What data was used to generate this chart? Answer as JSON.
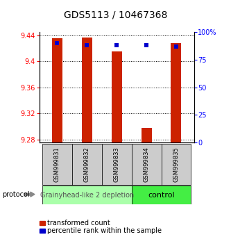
{
  "title": "GDS5113 / 10467368",
  "samples": [
    "GSM999831",
    "GSM999832",
    "GSM999833",
    "GSM999834",
    "GSM999835"
  ],
  "red_values": [
    9.435,
    9.437,
    9.415,
    9.298,
    9.428
  ],
  "blue_values": [
    90,
    88,
    88,
    88,
    87
  ],
  "ylim_left": [
    9.275,
    9.445
  ],
  "ylim_right": [
    0,
    100
  ],
  "yticks_left": [
    9.28,
    9.32,
    9.36,
    9.4,
    9.44
  ],
  "yticks_right": [
    0,
    25,
    50,
    75,
    100
  ],
  "ytick_labels_right": [
    "0",
    "25",
    "50",
    "75",
    "100%"
  ],
  "red_base": 9.275,
  "group1_label": "Grainyhead-like 2 depletion",
  "group1_color": "#aaffaa",
  "group2_label": "control",
  "group2_color": "#44ee44",
  "protocol_label": "protocol",
  "legend_red": "transformed count",
  "legend_blue": "percentile rank within the sample",
  "bar_width": 0.35,
  "blue_marker_size": 5,
  "bar_color_red": "#cc2200",
  "bar_color_blue": "#0000cc",
  "label_area_color": "#cccccc",
  "font_size_title": 10,
  "font_size_ticks": 7,
  "font_size_legend": 7,
  "font_size_sample": 6,
  "font_size_group": 7
}
